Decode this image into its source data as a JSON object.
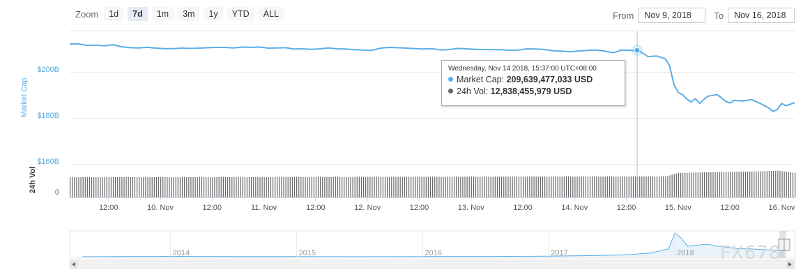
{
  "zoom": {
    "label": "Zoom",
    "buttons": [
      "1d",
      "7d",
      "1m",
      "3m",
      "1y",
      "YTD",
      "ALL"
    ],
    "active": "7d"
  },
  "range": {
    "from_label": "From",
    "from_value": "Nov 9, 2018",
    "to_label": "To",
    "to_value": "Nov 16, 2018"
  },
  "tooltip": {
    "date": "Wednesday, Nov 14 2018, 15:37:00 UTC+08:00",
    "market_cap_label": "Market Cap:",
    "market_cap_value": "209,639,477,033 USD",
    "vol_label": "24h Vol:",
    "vol_value": "12,838,455,979 USD"
  },
  "watermark": "FX678",
  "colors": {
    "market_cap": "#5aaee6",
    "volume": "#666666",
    "nav_fill": "#e8f3fb"
  },
  "chart_data": {
    "type": "line",
    "x_unit": "hours since start of displayed range",
    "x_range": [
      0,
      168
    ],
    "y_axis": {
      "label": "Market Cap",
      "range_billion_usd": [
        160,
        222
      ],
      "ticks": [
        "$160B",
        "$180B",
        "$200B"
      ]
    },
    "volume_axis": {
      "label": "24h Vol",
      "ticks": [
        "0"
      ]
    },
    "x_tick_labels": [
      "12:00",
      "10. Nov",
      "12:00",
      "11. Nov",
      "12:00",
      "12. Nov",
      "12:00",
      "13. Nov",
      "12:00",
      "14. Nov",
      "12:00",
      "15. Nov",
      "12:00",
      "16. Nov"
    ],
    "x_tick_hours": [
      9,
      21,
      33,
      45,
      57,
      69,
      81,
      93,
      105,
      117,
      129,
      141,
      153,
      165
    ],
    "series": [
      {
        "name": "Market Cap",
        "points": [
          [
            0,
            212.4
          ],
          [
            2,
            212.5
          ],
          [
            4,
            211.8
          ],
          [
            6,
            211.9
          ],
          [
            8,
            211.6
          ],
          [
            10,
            212.1
          ],
          [
            12,
            211.2
          ],
          [
            14,
            210.8
          ],
          [
            16,
            210.7
          ],
          [
            18,
            211.0
          ],
          [
            20,
            210.6
          ],
          [
            22,
            210.4
          ],
          [
            24,
            210.4
          ],
          [
            26,
            210.6
          ],
          [
            28,
            210.5
          ],
          [
            30,
            210.6
          ],
          [
            32,
            210.8
          ],
          [
            34,
            210.9
          ],
          [
            36,
            210.9
          ],
          [
            38,
            210.7
          ],
          [
            40,
            211.1
          ],
          [
            42,
            210.9
          ],
          [
            44,
            211.1
          ],
          [
            46,
            210.6
          ],
          [
            48,
            210.7
          ],
          [
            50,
            210.8
          ],
          [
            52,
            210.2
          ],
          [
            54,
            210.3
          ],
          [
            56,
            210.1
          ],
          [
            58,
            210.3
          ],
          [
            60,
            210.7
          ],
          [
            62,
            210.3
          ],
          [
            64,
            210.2
          ],
          [
            66,
            209.9
          ],
          [
            68,
            209.8
          ],
          [
            70,
            209.6
          ],
          [
            72,
            210.6
          ],
          [
            74,
            210.9
          ],
          [
            76,
            210.8
          ],
          [
            78,
            210.6
          ],
          [
            80,
            210.4
          ],
          [
            82,
            210.2
          ],
          [
            84,
            210.4
          ],
          [
            86,
            209.8
          ],
          [
            88,
            210.0
          ],
          [
            90,
            210.5
          ],
          [
            92,
            210.3
          ],
          [
            94,
            210.1
          ],
          [
            96,
            210.0
          ],
          [
            98,
            209.9
          ],
          [
            100,
            209.9
          ],
          [
            102,
            209.7
          ],
          [
            104,
            209.8
          ],
          [
            106,
            210.3
          ],
          [
            108,
            210.2
          ],
          [
            110,
            210.0
          ],
          [
            112,
            209.5
          ],
          [
            114,
            209.3
          ],
          [
            116,
            209.0
          ],
          [
            118,
            209.4
          ],
          [
            120,
            209.6
          ],
          [
            122,
            209.8
          ],
          [
            124,
            209.3
          ],
          [
            126,
            208.6
          ],
          [
            128,
            209.8
          ],
          [
            130,
            209.6
          ],
          [
            132,
            209.4
          ],
          [
            134,
            206.9
          ],
          [
            136,
            207.2
          ],
          [
            138,
            206.0
          ],
          [
            139,
            203.0
          ],
          [
            140,
            195.0
          ],
          [
            141,
            191.3
          ],
          [
            142,
            190.5
          ],
          [
            143,
            188.5
          ],
          [
            144,
            187.2
          ],
          [
            145,
            188.6
          ],
          [
            146,
            186.6
          ],
          [
            147,
            188.4
          ],
          [
            148,
            189.8
          ],
          [
            150,
            190.4
          ],
          [
            151,
            189.1
          ],
          [
            152,
            187.5
          ],
          [
            153,
            186.8
          ],
          [
            154,
            187.9
          ],
          [
            156,
            187.6
          ],
          [
            158,
            188.2
          ],
          [
            160,
            186.6
          ],
          [
            162,
            184.6
          ],
          [
            163,
            183.1
          ],
          [
            164,
            184.0
          ],
          [
            165,
            186.6
          ],
          [
            166,
            185.6
          ],
          [
            167,
            186.2
          ],
          [
            168,
            186.9
          ]
        ]
      },
      {
        "name": "24h Vol",
        "points": [
          [
            0,
            12.3
          ],
          [
            138,
            12.8
          ],
          [
            141,
            14.9
          ],
          [
            145,
            15.2
          ],
          [
            150,
            15.4
          ],
          [
            158,
            15.8
          ],
          [
            164,
            16.3
          ],
          [
            168,
            15.0
          ]
        ]
      }
    ],
    "crosshair_hour": 131.5,
    "navigator": {
      "year_labels": [
        "2014",
        "2015",
        "2016",
        "2017",
        "2018"
      ],
      "points_billion_usd": [
        [
          2013.3,
          1.5
        ],
        [
          2014.0,
          12
        ],
        [
          2014.5,
          8
        ],
        [
          2015.0,
          4
        ],
        [
          2015.5,
          3.5
        ],
        [
          2016.0,
          6
        ],
        [
          2016.5,
          10
        ],
        [
          2017.0,
          16
        ],
        [
          2017.4,
          40
        ],
        [
          2017.6,
          60
        ],
        [
          2017.8,
          120
        ],
        [
          2017.95,
          260
        ],
        [
          2018.0,
          800
        ],
        [
          2018.05,
          620
        ],
        [
          2018.1,
          350
        ],
        [
          2018.25,
          420
        ],
        [
          2018.35,
          350
        ],
        [
          2018.5,
          270
        ],
        [
          2018.6,
          260
        ],
        [
          2018.75,
          230
        ],
        [
          2018.87,
          200
        ]
      ]
    }
  }
}
